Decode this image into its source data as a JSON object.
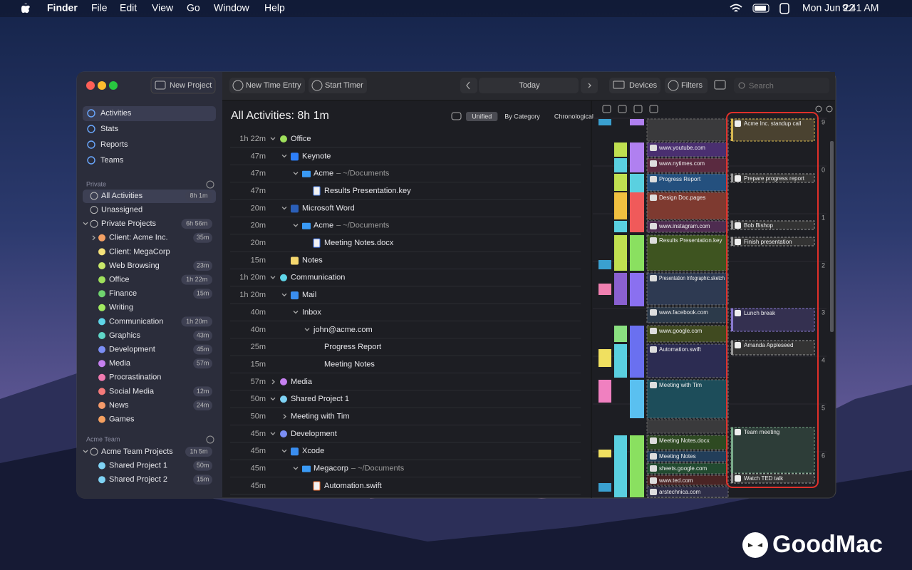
{
  "menubar": {
    "app": "Finder",
    "menus": [
      "File",
      "Edit",
      "View",
      "Go",
      "Window",
      "Help"
    ],
    "date": "Mon Jun 22",
    "time": "9:41 AM"
  },
  "sidebar": {
    "new_project": "New Project",
    "nav": [
      "Activities",
      "Stats",
      "Reports",
      "Teams"
    ],
    "private_header": "Private",
    "private_items": [
      {
        "label": "All Activities",
        "badge": "8h 1m"
      },
      {
        "label": "Unassigned"
      },
      {
        "label": "Private Projects",
        "badge": "6h 56m"
      },
      {
        "label": "Client: Acme Inc.",
        "badge": "35m"
      },
      {
        "label": "Client: MegaCorp"
      },
      {
        "label": "Web Browsing",
        "badge": "23m"
      },
      {
        "label": "Office",
        "badge": "1h 22m"
      },
      {
        "label": "Finance",
        "badge": "15m"
      },
      {
        "label": "Writing"
      },
      {
        "label": "Communication",
        "badge": "1h 20m"
      },
      {
        "label": "Graphics",
        "badge": "43m"
      },
      {
        "label": "Development",
        "badge": "45m"
      },
      {
        "label": "Media",
        "badge": "57m"
      },
      {
        "label": "Procrastination"
      },
      {
        "label": "Social Media",
        "badge": "12m"
      },
      {
        "label": "News",
        "badge": "24m"
      },
      {
        "label": "Games"
      }
    ],
    "team_header": "Acme Team",
    "team_items": [
      {
        "label": "Acme Team Projects",
        "badge": "1h 5m"
      },
      {
        "label": "Shared Project 1",
        "badge": "50m"
      },
      {
        "label": "Shared Project 2",
        "badge": "15m"
      }
    ]
  },
  "toolbar": {
    "new_time_entry": "New Time Entry",
    "start_timer": "Start Timer",
    "today": "Today",
    "devices": "Devices",
    "filters": "Filters",
    "search": "Search"
  },
  "activities": {
    "title": "All Activities: 8h 1m",
    "modes": [
      "Unified",
      "By Category",
      "Chronological"
    ],
    "rows": [
      {
        "time": "1h 22m",
        "label": "Office"
      },
      {
        "time": "47m",
        "label": "Keynote"
      },
      {
        "time": "47m",
        "label": "Acme",
        "path": "– ~/Documents"
      },
      {
        "time": "47m",
        "label": "Results Presentation.key"
      },
      {
        "time": "20m",
        "label": "Microsoft Word"
      },
      {
        "time": "20m",
        "label": "Acme",
        "path": "– ~/Documents"
      },
      {
        "time": "20m",
        "label": "Meeting Notes.docx"
      },
      {
        "time": "15m",
        "label": "Notes"
      },
      {
        "time": "1h 20m",
        "label": "Communication"
      },
      {
        "time": "1h 20m",
        "label": "Mail"
      },
      {
        "time": "40m",
        "label": "Inbox"
      },
      {
        "time": "40m",
        "label": "john@acme.com"
      },
      {
        "time": "25m",
        "label": "Progress Report"
      },
      {
        "time": "15m",
        "label": "Meeting Notes"
      },
      {
        "time": "57m",
        "label": "Media"
      },
      {
        "time": "50m",
        "label": "Shared Project 1"
      },
      {
        "time": "50m",
        "label": "Meeting with Tim"
      },
      {
        "time": "45m",
        "label": "Development"
      },
      {
        "time": "45m",
        "label": "Xcode"
      },
      {
        "time": "45m",
        "label": "Megacorp",
        "path": "– ~/Documents"
      },
      {
        "time": "45m",
        "label": "Automation.swift"
      }
    ]
  },
  "timeline": {
    "hours": [
      "9",
      "0",
      "1",
      "2",
      "3",
      "4",
      "5",
      "6"
    ],
    "app_entries": [
      "www.youtube.com",
      "www.nytimes.com",
      "Progress Report",
      "Design Doc.pages",
      "www.instagram.com",
      "Results Presentation.key",
      "Presentation Infographic.sketch",
      "www.facebook.com",
      "www.google.com",
      "Automation.swift",
      "Meeting with Tim",
      "Meeting Notes.docx",
      "Meeting Notes",
      "sheets.google.com",
      "www.ted.com",
      "arstechnica.com"
    ],
    "calendar_entries": [
      "Acme Inc. standup call",
      "Prepare progress report",
      "Bob Bishop",
      "Finish presentation",
      "Lunch break",
      "Amanda Appleseed",
      "Team meeting",
      "Watch TED talk"
    ]
  },
  "watermark": "GoodMac"
}
